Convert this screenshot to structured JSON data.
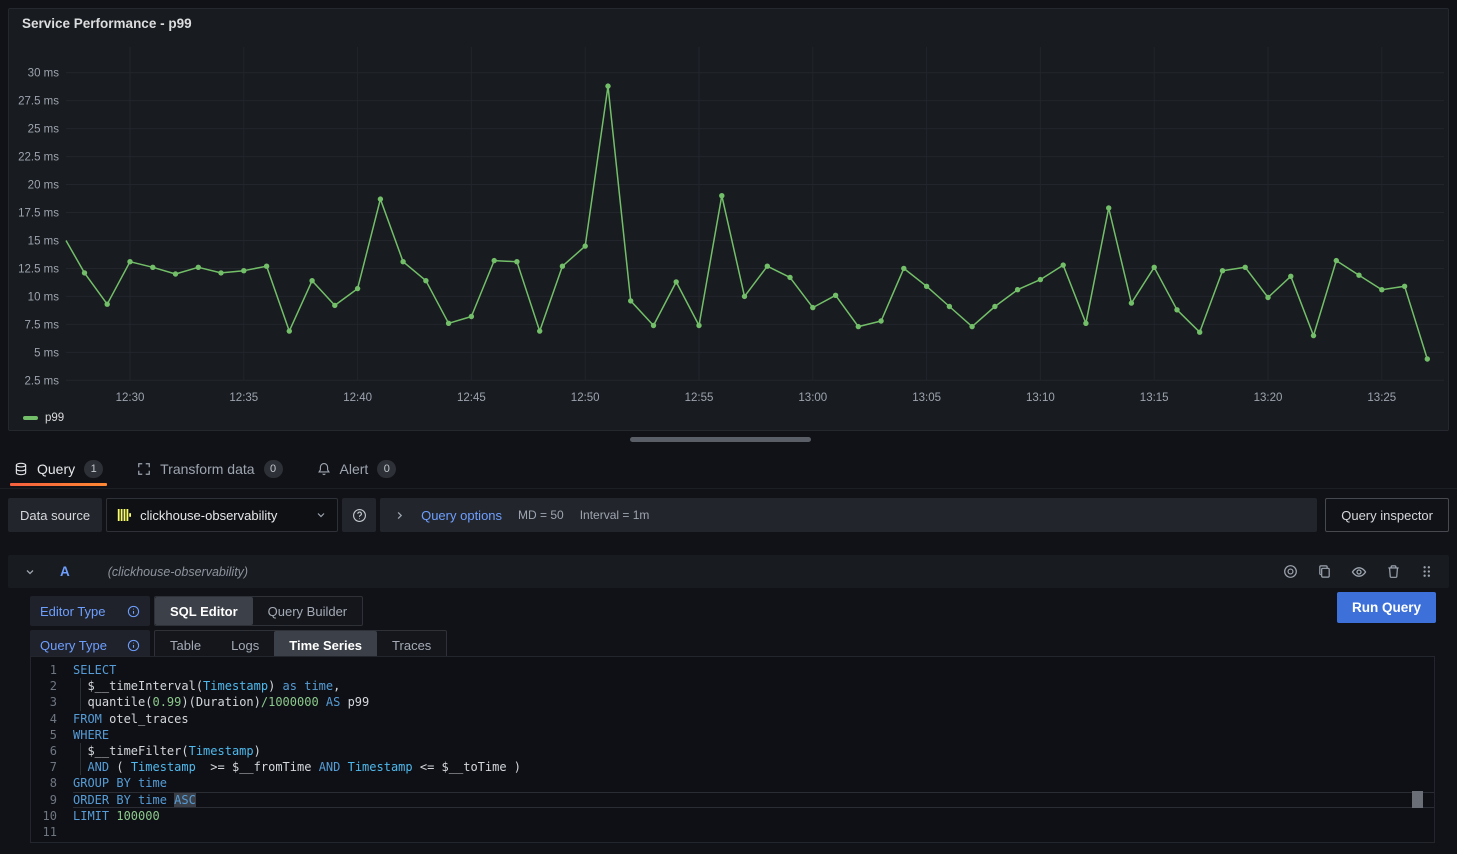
{
  "panel": {
    "title": "Service Performance - p99",
    "legend": "p99"
  },
  "colors": {
    "series_green": "#73BF69",
    "accent_blue": "#6E9FFF",
    "run_button_blue": "#3D71D9",
    "active_tab_orange": "#FF8833",
    "clickhouse_yellow": "#FAFF69"
  },
  "chart_data": {
    "type": "line",
    "title": "Service Performance - p99",
    "unit": "ms",
    "ylim": [
      2.5,
      30
    ],
    "grid": true,
    "legend_position": "bottom-left",
    "x": [
      "12:27",
      "12:28",
      "12:29",
      "12:30",
      "12:31",
      "12:32",
      "12:33",
      "12:34",
      "12:35",
      "12:36",
      "12:37",
      "12:38",
      "12:39",
      "12:40",
      "12:41",
      "12:42",
      "12:43",
      "12:44",
      "12:45",
      "12:46",
      "12:47",
      "12:48",
      "12:49",
      "12:50",
      "12:51",
      "12:52",
      "12:53",
      "12:54",
      "12:55",
      "12:56",
      "12:57",
      "12:58",
      "12:59",
      "13:00",
      "13:01",
      "13:02",
      "13:03",
      "13:04",
      "13:05",
      "13:06",
      "13:07",
      "13:08",
      "13:09",
      "13:10",
      "13:11",
      "13:12",
      "13:13",
      "13:14",
      "13:15",
      "13:16",
      "13:17",
      "13:18",
      "13:19",
      "13:20",
      "13:21",
      "13:22",
      "13:23",
      "13:24",
      "13:25",
      "13:26",
      "13:27"
    ],
    "x_ticks": [
      "12:30",
      "12:35",
      "12:40",
      "12:45",
      "12:50",
      "12:55",
      "13:00",
      "13:05",
      "13:10",
      "13:15",
      "13:20",
      "13:25"
    ],
    "y_ticks": [
      "2.5 ms",
      "5 ms",
      "7.5 ms",
      "10 ms",
      "12.5 ms",
      "15 ms",
      "17.5 ms",
      "20 ms",
      "22.5 ms",
      "25 ms",
      "27.5 ms",
      "30 ms"
    ],
    "series": [
      {
        "name": "p99",
        "values": [
          15.0,
          12.1,
          9.3,
          13.1,
          12.6,
          12.0,
          12.6,
          12.1,
          12.3,
          12.7,
          6.9,
          11.4,
          9.2,
          10.7,
          18.7,
          13.1,
          11.4,
          7.6,
          8.2,
          13.2,
          13.1,
          6.9,
          12.7,
          14.5,
          28.8,
          9.6,
          7.4,
          11.3,
          7.4,
          19.0,
          10.0,
          12.7,
          11.7,
          9.0,
          10.1,
          7.3,
          7.8,
          12.5,
          10.9,
          9.1,
          7.3,
          9.1,
          10.6,
          11.5,
          12.8,
          7.6,
          17.9,
          9.4,
          12.6,
          8.8,
          6.8,
          12.3,
          12.6,
          9.9,
          11.8,
          6.5,
          13.2,
          11.9,
          10.6,
          10.9,
          4.4
        ]
      }
    ]
  },
  "tabs": [
    {
      "label": "Query",
      "badge": "1",
      "active": true
    },
    {
      "label": "Transform data",
      "badge": "0",
      "active": false
    },
    {
      "label": "Alert",
      "badge": "0",
      "active": false
    }
  ],
  "toolbar": {
    "datasource_label": "Data source",
    "datasource_value": "clickhouse-observability",
    "query_options_label": "Query options",
    "md": "MD = 50",
    "interval": "Interval = 1m",
    "query_inspector_label": "Query inspector"
  },
  "query_row": {
    "ref_id": "A",
    "datasource_hint": "(clickhouse-observability)",
    "editor_type_label": "Editor Type",
    "editor_type_options": [
      "SQL Editor",
      "Query Builder"
    ],
    "editor_type_selected": "SQL Editor",
    "query_type_label": "Query Type",
    "query_type_options": [
      "Table",
      "Logs",
      "Time Series",
      "Traces"
    ],
    "query_type_selected": "Time Series",
    "run_query_label": "Run Query"
  },
  "sql": {
    "lines": [
      {
        "n": "1",
        "tokens": [
          [
            "kw",
            "SELECT"
          ]
        ]
      },
      {
        "n": "2",
        "g": true,
        "tokens": [
          [
            "pl",
            "  $__timeInterval("
          ],
          [
            "id",
            "Timestamp"
          ],
          [
            "pl",
            ") "
          ],
          [
            "kw",
            "as"
          ],
          [
            "pl",
            " "
          ],
          [
            "kw",
            "time"
          ],
          [
            "pl",
            ","
          ]
        ]
      },
      {
        "n": "3",
        "g": true,
        "tokens": [
          [
            "pl",
            "  quantile("
          ],
          [
            "num",
            "0.99"
          ],
          [
            "pl",
            ")(Duration)"
          ],
          [
            "num",
            "/1000000"
          ],
          [
            "pl",
            " "
          ],
          [
            "kw",
            "AS"
          ],
          [
            "pl",
            " p99"
          ]
        ]
      },
      {
        "n": "4",
        "tokens": [
          [
            "kw",
            "FROM"
          ],
          [
            "pl",
            " otel_traces"
          ]
        ]
      },
      {
        "n": "5",
        "tokens": [
          [
            "kw",
            "WHERE"
          ]
        ]
      },
      {
        "n": "6",
        "g": true,
        "tokens": [
          [
            "pl",
            "  $__timeFilter("
          ],
          [
            "id",
            "Timestamp"
          ],
          [
            "pl",
            ")"
          ]
        ]
      },
      {
        "n": "7",
        "g": true,
        "tokens": [
          [
            "pl",
            "  "
          ],
          [
            "kw",
            "AND"
          ],
          [
            "pl",
            " ( "
          ],
          [
            "id",
            "Timestamp"
          ],
          [
            "pl",
            "  >= $__fromTime "
          ],
          [
            "kw",
            "AND"
          ],
          [
            "pl",
            " "
          ],
          [
            "id",
            "Timestamp"
          ],
          [
            "pl",
            " <= $__toTime )"
          ]
        ]
      },
      {
        "n": "8",
        "tokens": [
          [
            "kw",
            "GROUP BY time"
          ]
        ]
      },
      {
        "n": "9",
        "cur": true,
        "tokens": [
          [
            "kw",
            "ORDER BY time "
          ],
          [
            "kwsel",
            "ASC"
          ]
        ]
      },
      {
        "n": "10",
        "tokens": [
          [
            "kw",
            "LIMIT"
          ],
          [
            "num",
            " 100000"
          ]
        ]
      },
      {
        "n": "11",
        "tokens": []
      }
    ]
  }
}
